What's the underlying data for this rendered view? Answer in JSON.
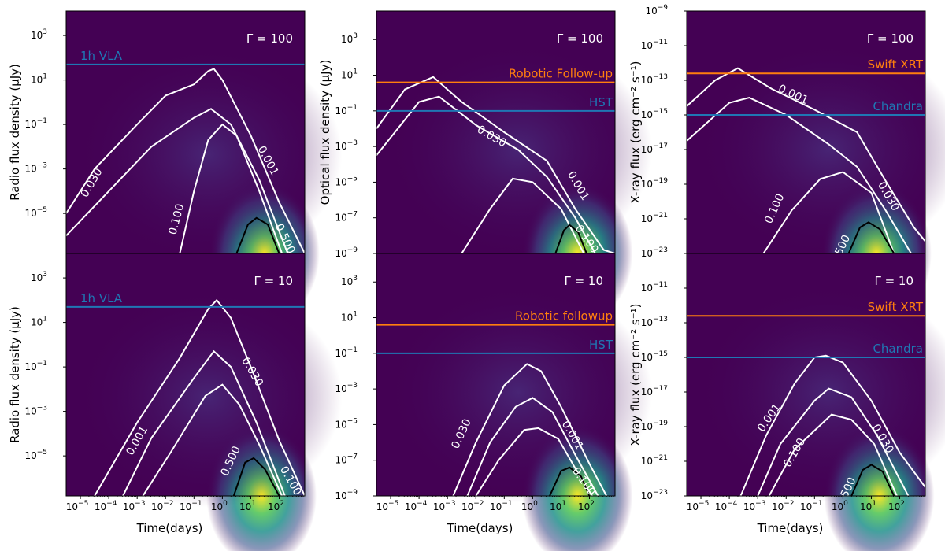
{
  "figure": {
    "xlabel": "Time(days)",
    "xtick_labels": [
      "10^{-4}",
      "10^{-3}",
      "10^{-2}",
      "10^{-1}",
      "10^{0}",
      "10^{1}",
      "10^{2}"
    ],
    "colors": {
      "background": "#440154",
      "contour_white": "#ffffff",
      "contour_black": "#000000",
      "blue_line": "#1f77b4",
      "orange_line": "#ff7f0e"
    }
  },
  "chart_data": [
    {
      "type": "heatmap",
      "panel": "radio-gamma-100",
      "ylabel": "Radio flux density (μJy)",
      "gamma_label": "Γ = 100",
      "xlim_log10": [
        -5.5,
        2.9
      ],
      "ylim_log10": [
        -6.8,
        4.1
      ],
      "ytick_labels": [
        "10^{3}",
        "10^{1}",
        "10^{-1}",
        "10^{-3}",
        "10^{-5}"
      ],
      "ytick_exps": [
        3,
        1,
        -1,
        -3,
        -5
      ],
      "hlines": [
        {
          "label": "1h VLA",
          "y_log10": 1.7,
          "color": "#1f77b4",
          "label_side": "left"
        }
      ],
      "contour_labels": [
        {
          "text": "0.030",
          "x": -4.5,
          "y": -3.7,
          "angle": -60
        },
        {
          "text": "0.001",
          "x": 1.5,
          "y": -2.7,
          "angle": 62
        },
        {
          "text": "0.100",
          "x": -1.5,
          "y": -5.3,
          "angle": -75
        },
        {
          "text": "0.500",
          "x": 2.1,
          "y": -6.2,
          "angle": 65
        }
      ]
    },
    {
      "type": "heatmap",
      "panel": "optical-gamma-100",
      "ylabel": "Optical flux density (μJy)",
      "gamma_label": "Γ = 100",
      "xlim_log10": [
        -5.5,
        2.9
      ],
      "ylim_log10": [
        -9,
        4.6
      ],
      "ytick_labels": [
        "10^{3}",
        "10^{1}",
        "10^{-1}",
        "10^{-3}",
        "10^{-5}",
        "10^{-7}",
        "10^{-9}"
      ],
      "ytick_exps": [
        3,
        1,
        -1,
        -3,
        -5,
        -7,
        -9
      ],
      "hlines": [
        {
          "label": "Robotic Follow-up",
          "y_log10": 0.6,
          "color": "#ff7f0e",
          "label_side": "right"
        },
        {
          "label": "HST",
          "y_log10": -1,
          "color": "#1f77b4",
          "label_side": "right"
        }
      ],
      "contour_labels": [
        {
          "text": "0.030",
          "x": -1.5,
          "y": -2.6,
          "angle": 30
        },
        {
          "text": "0.001",
          "x": 1.5,
          "y": -5.3,
          "angle": 60
        },
        {
          "text": "0.100",
          "x": 1.8,
          "y": -8.3,
          "angle": 55
        }
      ]
    },
    {
      "type": "heatmap",
      "panel": "xray-gamma-100",
      "ylabel": "X-ray flux (erg cm⁻² s⁻¹)",
      "gamma_label": "Γ = 100",
      "xlim_log10": [
        -5.5,
        2.9
      ],
      "ylim_log10": [
        -23,
        -9
      ],
      "ytick_labels": [
        "10^{-9}",
        "10^{-11}",
        "10^{-13}",
        "10^{-15}",
        "10^{-17}",
        "10^{-19}",
        "10^{-21}",
        "10^{-23}"
      ],
      "ytick_exps": [
        -9,
        -11,
        -13,
        -15,
        -17,
        -19,
        -21,
        -23
      ],
      "hlines": [
        {
          "label": "Swift XRT",
          "y_log10": -12.6,
          "color": "#ff7f0e",
          "label_side": "right"
        },
        {
          "label": "Chandra",
          "y_log10": -15,
          "color": "#1f77b4",
          "label_side": "right"
        }
      ],
      "contour_labels": [
        {
          "text": "0.001",
          "x": -1.8,
          "y": -14,
          "angle": 25
        },
        {
          "text": "0.030",
          "x": 1.5,
          "y": -19.8,
          "angle": 60
        },
        {
          "text": "0.100",
          "x": -2.3,
          "y": -20.5,
          "angle": -65
        },
        {
          "text": "500",
          "x": 0.1,
          "y": -22.6,
          "angle": -65
        }
      ]
    },
    {
      "type": "heatmap",
      "panel": "radio-gamma-10",
      "ylabel": "Radio flux density (μJy)",
      "gamma_label": "Γ = 10",
      "xlim_log10": [
        -5.5,
        2.9
      ],
      "ylim_log10": [
        -6.8,
        4.1
      ],
      "ytick_labels": [
        "10^{3}",
        "10^{1}",
        "10^{-1}",
        "10^{-3}",
        "10^{-5}"
      ],
      "ytick_exps": [
        3,
        1,
        -1,
        -3,
        -5
      ],
      "hlines": [
        {
          "label": "1h VLA",
          "y_log10": 1.7,
          "color": "#1f77b4",
          "label_side": "left"
        }
      ],
      "contour_labels": [
        {
          "text": "0.030",
          "x": 0.95,
          "y": -1.3,
          "angle": 60
        },
        {
          "text": "0.001",
          "x": -2.9,
          "y": -4.4,
          "angle": -60
        },
        {
          "text": "0.500",
          "x": 0.4,
          "y": -5.3,
          "angle": -65
        },
        {
          "text": "0.100",
          "x": 2.3,
          "y": -6.2,
          "angle": 60
        }
      ]
    },
    {
      "type": "heatmap",
      "panel": "optical-gamma-10",
      "ylabel": "",
      "gamma_label": "Γ = 10",
      "xlim_log10": [
        -5.5,
        2.9
      ],
      "ylim_log10": [
        -9,
        4.6
      ],
      "ytick_labels": [
        "10^{3}",
        "10^{1}",
        "10^{-1}",
        "10^{-3}",
        "10^{-5}",
        "10^{-7}",
        "10^{-9}"
      ],
      "ytick_exps": [
        3,
        1,
        -1,
        -3,
        -5,
        -7,
        -9
      ],
      "hlines": [
        {
          "label": "Robotic followup",
          "y_log10": 0.6,
          "color": "#ff7f0e",
          "label_side": "right"
        },
        {
          "label": "HST",
          "y_log10": -1,
          "color": "#1f77b4",
          "label_side": "right"
        }
      ],
      "contour_labels": [
        {
          "text": "0.030",
          "x": -2.4,
          "y": -5.6,
          "angle": -65
        },
        {
          "text": "0.001",
          "x": 1.3,
          "y": -5.7,
          "angle": 60
        },
        {
          "text": "0.100",
          "x": 1.7,
          "y": -8.3,
          "angle": 55
        }
      ]
    },
    {
      "type": "heatmap",
      "panel": "xray-gamma-10",
      "ylabel": "X-ray flux (erg cm⁻² s⁻¹)",
      "gamma_label": "Γ = 10",
      "xlim_log10": [
        -5.5,
        2.9
      ],
      "ylim_log10": [
        -23,
        -9
      ],
      "ytick_labels": [
        "10^{-11}",
        "10^{-13}",
        "10^{-15}",
        "10^{-17}",
        "10^{-19}",
        "10^{-21}",
        "10^{-23}"
      ],
      "ytick_exps": [
        -11,
        -13,
        -15,
        -17,
        -19,
        -21,
        -23
      ],
      "hlines": [
        {
          "label": "Swift XRT",
          "y_log10": -12.6,
          "color": "#ff7f0e",
          "label_side": "right"
        },
        {
          "label": "Chandra",
          "y_log10": -15,
          "color": "#1f77b4",
          "label_side": "right"
        }
      ],
      "contour_labels": [
        {
          "text": "0.001",
          "x": -2.5,
          "y": -18.6,
          "angle": -55
        },
        {
          "text": "0.030",
          "x": 1.3,
          "y": -19.8,
          "angle": 60
        },
        {
          "text": "0.100",
          "x": -1.6,
          "y": -20.6,
          "angle": -60
        },
        {
          "text": "500",
          "x": 0.3,
          "y": -22.6,
          "angle": -65
        }
      ]
    }
  ]
}
